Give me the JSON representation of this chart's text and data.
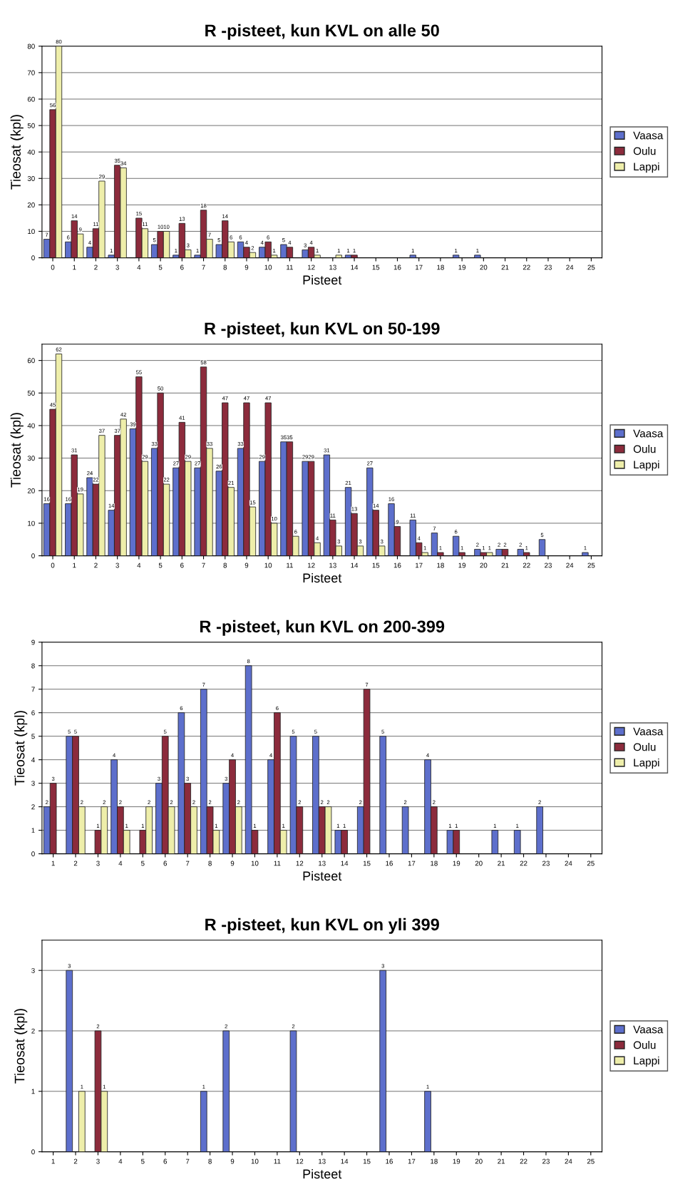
{
  "chart_data": [
    {
      "type": "bar",
      "title": "R -pisteet, kun KVL on alle 50",
      "xlabel": "Pisteet",
      "ylabel": "Tieosat (kpl)",
      "categories": [
        "0",
        "1",
        "2",
        "3",
        "4",
        "5",
        "6",
        "7",
        "8",
        "9",
        "10",
        "11",
        "12",
        "13",
        "14",
        "15",
        "16",
        "17",
        "18",
        "19",
        "20",
        "21",
        "22",
        "23",
        "24",
        "25"
      ],
      "series": [
        {
          "name": "Vaasa",
          "color": "#5d6fcc",
          "values": [
            7,
            6,
            4,
            1,
            null,
            5,
            1,
            1,
            5,
            6,
            4,
            5,
            3,
            null,
            1,
            null,
            null,
            1,
            null,
            1,
            1,
            null,
            null,
            null,
            null,
            null
          ]
        },
        {
          "name": "Oulu",
          "color": "#8c2b3c",
          "values": [
            56,
            14,
            11,
            35,
            15,
            10,
            13,
            18,
            14,
            4,
            6,
            4,
            4,
            null,
            1,
            null,
            null,
            null,
            null,
            null,
            null,
            null,
            null,
            null,
            null,
            null
          ]
        },
        {
          "name": "Lappi",
          "color": "#eeeeaa",
          "values": [
            80,
            9,
            29,
            34,
            11,
            10,
            3,
            7,
            6,
            2,
            1,
            null,
            1,
            1,
            null,
            null,
            null,
            null,
            null,
            null,
            null,
            null,
            null,
            null,
            null,
            null
          ]
        }
      ],
      "ylim": [
        0,
        80
      ],
      "yticks": [
        0,
        10,
        20,
        30,
        40,
        50,
        60,
        70,
        80
      ],
      "grid": "y",
      "legend": "right",
      "data_labels": true
    },
    {
      "type": "bar",
      "title": "R -pisteet, kun KVL on 50-199",
      "xlabel": "Pisteet",
      "ylabel": "Tieosat (kpl)",
      "categories": [
        "0",
        "1",
        "2",
        "3",
        "4",
        "5",
        "6",
        "7",
        "8",
        "9",
        "10",
        "11",
        "12",
        "13",
        "14",
        "15",
        "16",
        "17",
        "18",
        "19",
        "20",
        "21",
        "22",
        "23",
        "24",
        "25"
      ],
      "series": [
        {
          "name": "Vaasa",
          "color": "#5d6fcc",
          "values": [
            16,
            16,
            24,
            14,
            39,
            33,
            27,
            27,
            26,
            33,
            29,
            35,
            29,
            31,
            21,
            27,
            16,
            11,
            7,
            6,
            2,
            2,
            2,
            5,
            null,
            1
          ]
        },
        {
          "name": "Oulu",
          "color": "#8c2b3c",
          "values": [
            45,
            31,
            22,
            37,
            55,
            50,
            41,
            58,
            47,
            47,
            47,
            35,
            29,
            11,
            13,
            14,
            9,
            4,
            1,
            1,
            1,
            2,
            1,
            null,
            null,
            null
          ]
        },
        {
          "name": "Lappi",
          "color": "#eeeeaa",
          "values": [
            62,
            19,
            37,
            42,
            29,
            22,
            29,
            33,
            21,
            15,
            10,
            6,
            4,
            3,
            3,
            3,
            null,
            1,
            null,
            null,
            1,
            null,
            null,
            null,
            null,
            null
          ]
        }
      ],
      "ylim": [
        0,
        65
      ],
      "yticks": [
        0,
        10,
        20,
        30,
        40,
        50,
        60
      ],
      "grid": "y",
      "legend": "right",
      "data_labels": true
    },
    {
      "type": "bar",
      "title": "R -pisteet, kun KVL on 200-399",
      "xlabel": "Pisteet",
      "ylabel": "Tieosat (kpl)",
      "categories": [
        "1",
        "2",
        "3",
        "4",
        "5",
        "6",
        "7",
        "8",
        "9",
        "10",
        "11",
        "12",
        "13",
        "14",
        "15",
        "16",
        "17",
        "18",
        "19",
        "20",
        "21",
        "22",
        "23",
        "24",
        "25"
      ],
      "series": [
        {
          "name": "Vaasa",
          "color": "#5d6fcc",
          "values": [
            2,
            5,
            null,
            4,
            null,
            3,
            6,
            7,
            3,
            8,
            4,
            5,
            5,
            1,
            2,
            5,
            2,
            4,
            1,
            null,
            1,
            1,
            2,
            null,
            null
          ]
        },
        {
          "name": "Oulu",
          "color": "#8c2b3c",
          "values": [
            3,
            5,
            1,
            2,
            1,
            5,
            3,
            2,
            4,
            1,
            6,
            2,
            2,
            1,
            7,
            null,
            null,
            2,
            1,
            null,
            null,
            null,
            null,
            null,
            null
          ]
        },
        {
          "name": "Lappi",
          "color": "#eeeeaa",
          "values": [
            null,
            2,
            2,
            1,
            2,
            2,
            2,
            1,
            2,
            null,
            1,
            null,
            2,
            null,
            null,
            null,
            null,
            null,
            null,
            null,
            null,
            null,
            null,
            null,
            null
          ]
        }
      ],
      "ylim": [
        0,
        9
      ],
      "yticks": [
        0,
        1,
        2,
        3,
        4,
        5,
        6,
        7,
        8,
        9
      ],
      "grid": "y",
      "legend": "right",
      "data_labels": true
    },
    {
      "type": "bar",
      "title": "R -pisteet, kun KVL on yli 399",
      "xlabel": "Pisteet",
      "ylabel": "Tieosat (kpl)",
      "categories": [
        "1",
        "2",
        "3",
        "4",
        "5",
        "6",
        "7",
        "8",
        "9",
        "10",
        "11",
        "12",
        "13",
        "14",
        "15",
        "16",
        "17",
        "18",
        "19",
        "20",
        "21",
        "22",
        "23",
        "24",
        "25"
      ],
      "series": [
        {
          "name": "Vaasa",
          "color": "#5d6fcc",
          "values": [
            null,
            3,
            null,
            null,
            null,
            null,
            null,
            1,
            2,
            null,
            null,
            2,
            null,
            null,
            null,
            3,
            null,
            1,
            null,
            null,
            null,
            null,
            null,
            null,
            null
          ]
        },
        {
          "name": "Oulu",
          "color": "#8c2b3c",
          "values": [
            null,
            null,
            2,
            null,
            null,
            null,
            null,
            null,
            null,
            null,
            null,
            null,
            null,
            null,
            null,
            null,
            null,
            null,
            null,
            null,
            null,
            null,
            null,
            null,
            null
          ]
        },
        {
          "name": "Lappi",
          "color": "#eeeeaa",
          "values": [
            null,
            1,
            1,
            null,
            null,
            null,
            null,
            null,
            null,
            null,
            null,
            null,
            null,
            null,
            null,
            null,
            null,
            null,
            null,
            null,
            null,
            null,
            null,
            null,
            null
          ]
        }
      ],
      "ylim": [
        0,
        3.5
      ],
      "yticks": [
        0,
        1,
        2,
        3
      ],
      "grid": "y",
      "legend": "right",
      "data_labels": true
    }
  ]
}
